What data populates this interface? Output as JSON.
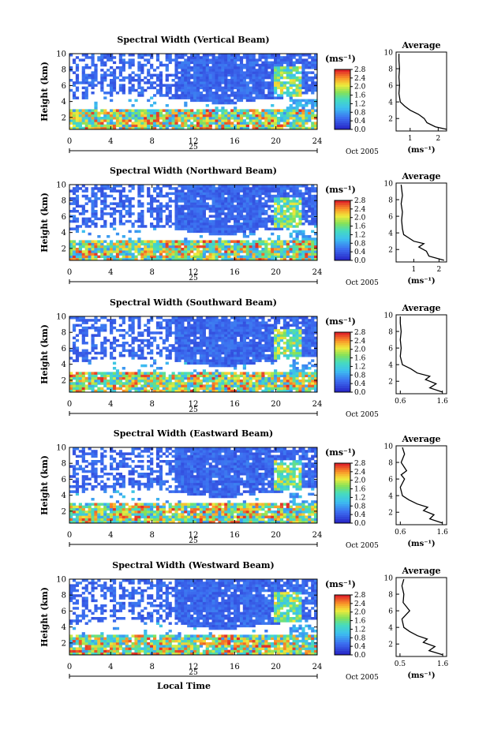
{
  "figure": {
    "shared_xlabel": "Local Time",
    "date_label": "Oct 2005",
    "day_label": "25"
  },
  "chart_data": [
    {
      "type": "heatmap",
      "title": "Spectral Width (Vertical Beam)",
      "ylabel": "Height (km)",
      "xlim": [
        0,
        24
      ],
      "ylim": [
        0.5,
        10
      ],
      "xticks": [
        0,
        4,
        8,
        12,
        16,
        20,
        24
      ],
      "yticks": [
        2,
        4,
        6,
        8,
        10
      ],
      "colorbar": {
        "label": "(ms⁻¹)",
        "min": 0.0,
        "max": 2.8,
        "ticks": [
          "0.0",
          "0.4",
          "0.8",
          "1.2",
          "1.6",
          "2.0",
          "2.4",
          "2.8"
        ]
      },
      "average_profile": {
        "title": "Average",
        "xlabel": "(ms⁻¹)",
        "xlim": [
          0.5,
          2.3
        ],
        "xticks": [
          1,
          2
        ],
        "yticks": [
          2,
          4,
          6,
          8,
          10
        ],
        "height_km": [
          0.7,
          1.0,
          1.5,
          2.0,
          2.5,
          3.0,
          3.5,
          4.0,
          5.0,
          6.0,
          7.0,
          8.0,
          9.0,
          9.8
        ],
        "width": [
          2.3,
          1.9,
          1.6,
          1.5,
          1.3,
          1.0,
          0.8,
          0.65,
          0.6,
          0.62,
          0.6,
          0.62,
          0.6,
          0.6
        ]
      }
    },
    {
      "type": "heatmap",
      "title": "Spectral Width (Northward Beam)",
      "ylabel": "Height (km)",
      "xlim": [
        0,
        24
      ],
      "ylim": [
        0.5,
        10
      ],
      "xticks": [
        0,
        4,
        8,
        12,
        16,
        20,
        24
      ],
      "yticks": [
        2,
        4,
        6,
        8,
        10
      ],
      "colorbar": {
        "label": "(ms⁻¹)",
        "min": 0.0,
        "max": 2.8,
        "ticks": [
          "0.0",
          "0.4",
          "0.8",
          "1.2",
          "1.6",
          "2.0",
          "2.4",
          "2.8"
        ]
      },
      "average_profile": {
        "title": "Average",
        "xlabel": "(ms⁻¹)",
        "xlim": [
          0.3,
          2.3
        ],
        "xticks": [
          1,
          2
        ],
        "yticks": [
          2,
          4,
          6,
          8,
          10
        ],
        "height_km": [
          0.7,
          1.2,
          1.8,
          2.3,
          2.7,
          3.0,
          3.4,
          3.8,
          4.5,
          5.5,
          6.5,
          7.5,
          8.5,
          9.8
        ],
        "width": [
          2.2,
          1.6,
          1.5,
          1.2,
          1.4,
          1.0,
          0.8,
          0.6,
          0.55,
          0.52,
          0.55,
          0.5,
          0.55,
          0.5
        ]
      }
    },
    {
      "type": "heatmap",
      "title": "Spectral Width (Southward Beam)",
      "ylabel": "Height (km)",
      "xlim": [
        0,
        24
      ],
      "ylim": [
        0.5,
        10
      ],
      "xticks": [
        0,
        4,
        8,
        12,
        16,
        20,
        24
      ],
      "yticks": [
        2,
        4,
        6,
        8,
        10
      ],
      "colorbar": {
        "label": "(ms⁻¹)",
        "min": 0.0,
        "max": 2.8,
        "ticks": [
          "0.0",
          "0.4",
          "0.8",
          "1.2",
          "1.6",
          "2.0",
          "2.4",
          "2.8"
        ]
      },
      "average_profile": {
        "title": "Average",
        "xlabel": "",
        "xlim": [
          0.5,
          1.7
        ],
        "xticks": [
          0.6,
          1.6
        ],
        "xticklabels": [
          "0.6",
          "1.6"
        ],
        "yticks": [
          2,
          4,
          6,
          8,
          10
        ],
        "height_km": [
          0.7,
          1.2,
          1.7,
          2.2,
          2.6,
          3.0,
          3.5,
          4.0,
          5.0,
          6.0,
          7.0,
          8.0,
          9.0,
          9.8
        ],
        "width": [
          1.6,
          1.3,
          1.45,
          1.2,
          1.3,
          1.0,
          0.85,
          0.65,
          0.6,
          0.62,
          0.6,
          0.62,
          0.6,
          0.6
        ]
      }
    },
    {
      "type": "heatmap",
      "title": "Spectral Width (Eastward Beam)",
      "ylabel": "Height (km)",
      "xlim": [
        0,
        24
      ],
      "ylim": [
        0.5,
        10
      ],
      "xticks": [
        0,
        4,
        8,
        12,
        16,
        20,
        24
      ],
      "yticks": [
        2,
        4,
        6,
        8,
        10
      ],
      "colorbar": {
        "label": "(ms⁻¹)",
        "min": 0.0,
        "max": 2.8,
        "ticks": [
          "0.0",
          "0.4",
          "0.8",
          "1.2",
          "1.6",
          "2.0",
          "2.4",
          "2.8"
        ]
      },
      "average_profile": {
        "title": "Average",
        "xlabel": "(ms⁻¹)",
        "xlim": [
          0.5,
          1.7
        ],
        "xticks": [
          0.6,
          1.6
        ],
        "xticklabels": [
          "0.6",
          "1.6"
        ],
        "yticks": [
          2,
          4,
          6,
          8,
          10
        ],
        "height_km": [
          0.7,
          1.2,
          1.7,
          2.2,
          2.6,
          3.0,
          3.5,
          4.0,
          5.0,
          6.0,
          6.5,
          7.0,
          8.0,
          9.0,
          9.8
        ],
        "width": [
          1.6,
          1.3,
          1.4,
          1.15,
          1.25,
          1.0,
          0.8,
          0.65,
          0.6,
          0.7,
          0.62,
          0.75,
          0.62,
          0.7,
          0.65
        ]
      }
    },
    {
      "type": "heatmap",
      "title": "Spectral Width (Westward Beam)",
      "ylabel": "Height (km)",
      "xlim": [
        0,
        24
      ],
      "ylim": [
        0.5,
        10
      ],
      "xticks": [
        0,
        4,
        8,
        12,
        16,
        20,
        24
      ],
      "yticks": [
        2,
        4,
        6,
        8,
        10
      ],
      "colorbar": {
        "label": "(ms⁻¹)",
        "min": 0.0,
        "max": 2.8,
        "ticks": [
          "0.0",
          "0.4",
          "0.8",
          "1.2",
          "1.6",
          "2.0",
          "2.4",
          "2.8"
        ]
      },
      "average_profile": {
        "title": "Average",
        "xlabel": "(ms⁻¹)",
        "xlim": [
          0.4,
          1.7
        ],
        "xticks": [
          0.5,
          1.6
        ],
        "xticklabels": [
          "0.5",
          "1.6"
        ],
        "yticks": [
          2,
          4,
          6,
          8,
          10
        ],
        "height_km": [
          0.7,
          1.2,
          1.7,
          2.2,
          2.6,
          3.0,
          3.5,
          4.0,
          5.0,
          6.0,
          7.0,
          8.0,
          9.0,
          9.8
        ],
        "width": [
          1.6,
          1.25,
          1.4,
          1.1,
          1.2,
          0.95,
          0.75,
          0.6,
          0.55,
          0.75,
          0.58,
          0.6,
          0.55,
          0.6
        ]
      }
    }
  ]
}
